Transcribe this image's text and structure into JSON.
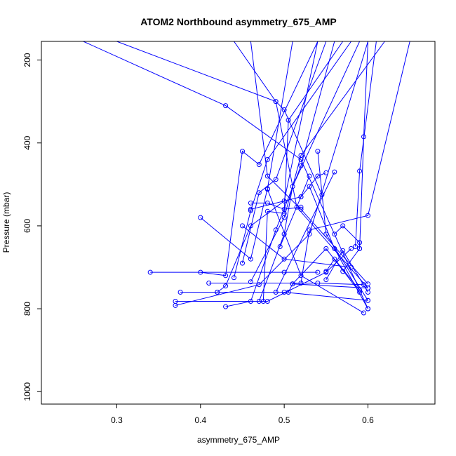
{
  "chart_data": {
    "type": "line",
    "title": "ATOM2 Northbound asymmetry_675_AMP",
    "xlabel": "asymmetry_675_AMP",
    "ylabel": "Pressure (mbar)",
    "xlim": [
      0.21,
      0.68
    ],
    "ylim": [
      1030,
      155
    ],
    "y_reversed": true,
    "x_ticks": [
      0.3,
      0.4,
      0.5,
      0.6
    ],
    "x_tick_labels": [
      "0.3",
      "0.4",
      "0.5",
      "0.6"
    ],
    "y_ticks": [
      200,
      400,
      600,
      800,
      1000
    ],
    "y_tick_labels": [
      "200",
      "400",
      "600",
      "800",
      "1000"
    ],
    "grid": false,
    "line_color": "#0000ff",
    "marker": "open-circle",
    "series": [
      {
        "points": [
          [
            0.34,
            712
          ],
          [
            0.5,
            712
          ],
          [
            0.54,
            712
          ]
        ]
      },
      {
        "points": [
          [
            0.37,
            782
          ],
          [
            0.48,
            782
          ],
          [
            0.55,
            712
          ],
          [
            0.58,
            655
          ]
        ]
      },
      {
        "points": [
          [
            0.37,
            792
          ],
          [
            0.47,
            742
          ],
          [
            0.53,
            620
          ],
          [
            0.6,
            155
          ]
        ]
      },
      {
        "points": [
          [
            0.376,
            760
          ],
          [
            0.49,
            760
          ],
          [
            0.56,
            470
          ]
        ]
      },
      {
        "points": [
          [
            0.4,
            712
          ],
          [
            0.43,
            720
          ],
          [
            0.45,
            420
          ],
          [
            0.47,
            452
          ],
          [
            0.54,
            155
          ]
        ]
      },
      {
        "points": [
          [
            0.4,
            580
          ],
          [
            0.46,
            680
          ],
          [
            0.48,
            510
          ],
          [
            0.51,
            155
          ]
        ]
      },
      {
        "points": [
          [
            0.42,
            760
          ],
          [
            0.43,
            745
          ],
          [
            0.46,
            600
          ],
          [
            0.5,
            540
          ],
          [
            0.54,
            155
          ]
        ]
      },
      {
        "points": [
          [
            0.43,
            795
          ],
          [
            0.46,
            782
          ],
          [
            0.49,
            610
          ],
          [
            0.52,
            455
          ],
          [
            0.56,
            155
          ]
        ]
      },
      {
        "points": [
          [
            0.44,
            725
          ],
          [
            0.46,
            563
          ],
          [
            0.48,
            440
          ],
          [
            0.58,
            155
          ]
        ]
      },
      {
        "points": [
          [
            0.45,
            690
          ],
          [
            0.47,
            520
          ],
          [
            0.49,
            488
          ],
          [
            0.55,
            155
          ]
        ]
      },
      {
        "points": [
          [
            0.46,
            735
          ],
          [
            0.5,
            580
          ],
          [
            0.52,
            430
          ],
          [
            0.62,
            155
          ]
        ]
      },
      {
        "points": [
          [
            0.47,
            782
          ],
          [
            0.5,
            620
          ],
          [
            0.51,
            505
          ],
          [
            0.59,
            155
          ]
        ]
      },
      {
        "points": [
          [
            0.475,
            782
          ],
          [
            0.48,
            565
          ],
          [
            0.5,
            570
          ],
          [
            0.505,
            345
          ],
          [
            0.57,
            155
          ]
        ]
      },
      {
        "points": [
          [
            0.48,
            512
          ],
          [
            0.52,
            720
          ],
          [
            0.595,
            810
          ]
        ]
      },
      {
        "points": [
          [
            0.505,
            760
          ],
          [
            0.51,
            740
          ],
          [
            0.6,
            750
          ]
        ]
      },
      {
        "points": [
          [
            0.51,
            740
          ],
          [
            0.55,
            655
          ],
          [
            0.59,
            760
          ]
        ]
      },
      {
        "points": [
          [
            0.52,
            738
          ],
          [
            0.53,
            610
          ],
          [
            0.6,
            575
          ],
          [
            0.65,
            155
          ]
        ]
      },
      {
        "points": [
          [
            0.53,
            505
          ],
          [
            0.56,
            655
          ],
          [
            0.6,
            800
          ]
        ]
      },
      {
        "points": [
          [
            0.54,
            420
          ],
          [
            0.55,
            620
          ],
          [
            0.6,
            780
          ]
        ]
      },
      {
        "points": [
          [
            0.55,
            730
          ],
          [
            0.57,
            660
          ],
          [
            0.6,
            760
          ]
        ]
      },
      {
        "points": [
          [
            0.57,
            710
          ],
          [
            0.59,
            655
          ],
          [
            0.595,
            385
          ],
          [
            0.6,
            155
          ]
        ]
      },
      {
        "points": [
          [
            0.585,
            650
          ],
          [
            0.59,
            468
          ],
          [
            0.61,
            155
          ]
        ]
      },
      {
        "points": [
          [
            0.42,
            760
          ],
          [
            0.5,
            760
          ],
          [
            0.6,
            780
          ]
        ]
      },
      {
        "points": [
          [
            0.41,
            738
          ],
          [
            0.54,
            738
          ],
          [
            0.595,
            742
          ]
        ]
      },
      {
        "points": [
          [
            0.3,
            155
          ],
          [
            0.49,
            300
          ],
          [
            0.515,
            555
          ],
          [
            0.6,
            750
          ]
        ]
      },
      {
        "points": [
          [
            0.26,
            155
          ],
          [
            0.43,
            310
          ],
          [
            0.52,
            440
          ],
          [
            0.6,
            800
          ]
        ]
      },
      {
        "points": [
          [
            0.46,
            155
          ],
          [
            0.48,
            480
          ],
          [
            0.52,
            560
          ],
          [
            0.6,
            740
          ]
        ]
      },
      {
        "points": [
          [
            0.44,
            155
          ],
          [
            0.49,
            300
          ],
          [
            0.5,
            320
          ],
          [
            0.545,
            525
          ]
        ]
      },
      {
        "points": [
          [
            0.46,
            545
          ],
          [
            0.48,
            545
          ],
          [
            0.5,
            560
          ],
          [
            0.52,
            555
          ]
        ]
      },
      {
        "points": [
          [
            0.46,
            560
          ],
          [
            0.52,
            530
          ],
          [
            0.53,
            480
          ]
        ]
      },
      {
        "points": [
          [
            0.495,
            650
          ],
          [
            0.52,
            530
          ],
          [
            0.54,
            480
          ],
          [
            0.55,
            472
          ]
        ]
      },
      {
        "points": [
          [
            0.45,
            600
          ],
          [
            0.5,
            680
          ],
          [
            0.58,
            700
          ]
        ]
      },
      {
        "points": [
          [
            0.55,
            710
          ],
          [
            0.56,
            680
          ],
          [
            0.59,
            755
          ]
        ]
      },
      {
        "points": [
          [
            0.56,
            620
          ],
          [
            0.57,
            600
          ],
          [
            0.59,
            640
          ],
          [
            0.59,
            655
          ]
        ]
      }
    ]
  }
}
